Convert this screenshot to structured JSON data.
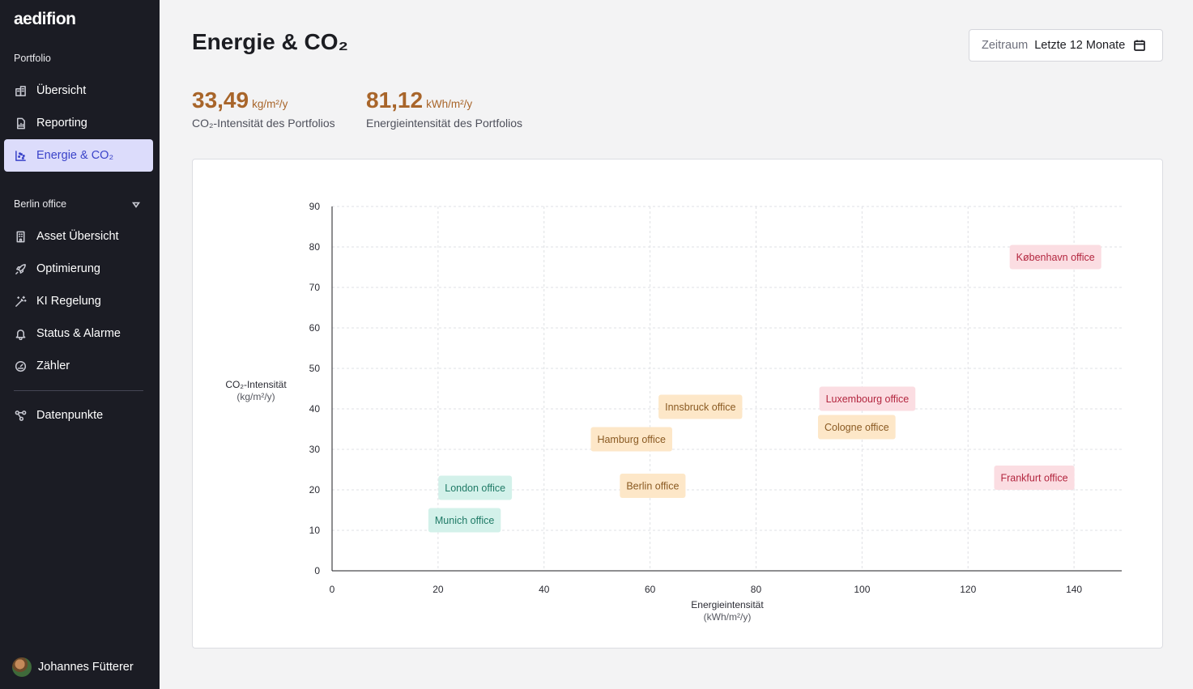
{
  "app": {
    "logo": "aedifion"
  },
  "sidebar": {
    "portfolio_label": "Portfolio",
    "portfolio_items": [
      {
        "label": "Übersicht",
        "icon": "buildings-icon"
      },
      {
        "label": "Reporting",
        "icon": "report-icon"
      },
      {
        "label": "Energie & CO₂",
        "icon": "scatter-chart-icon",
        "active": true
      }
    ],
    "asset_label": "Berlin office",
    "asset_items": [
      {
        "label": "Asset Übersicht",
        "icon": "building-icon"
      },
      {
        "label": "Optimierung",
        "icon": "rocket-icon"
      },
      {
        "label": "KI Regelung",
        "icon": "magic-wand-icon"
      },
      {
        "label": "Status & Alarme",
        "icon": "bell-icon"
      },
      {
        "label": "Zähler",
        "icon": "meter-icon"
      }
    ],
    "extra_items": [
      {
        "label": "Datenpunkte",
        "icon": "nodes-icon"
      }
    ],
    "user": {
      "name": "Johannes Fütterer"
    }
  },
  "header": {
    "title": "Energie & CO₂",
    "period_label": "Zeitraum",
    "period_value": "Letzte 12 Monate"
  },
  "kpis": [
    {
      "value": "33,49",
      "unit": "kg/m²/y",
      "caption": "CO₂-Intensität des Portfolios"
    },
    {
      "value": "81,12",
      "unit": "kWh/m²/y",
      "caption": "Energieintensität des Portfolios"
    }
  ],
  "colors": {
    "sidebar_bg": "#1b1c24",
    "accent": "#3a43c9",
    "kpi": "#a8652a",
    "green_bg": "#d3f1ea",
    "green_text": "#1f7a66",
    "orange_bg": "#fde7c8",
    "orange_text": "#8a5a22",
    "red_bg": "#fbdde2",
    "red_text": "#b3263f"
  },
  "chart_data": {
    "type": "scatter",
    "xlabel_line1": "Energieintensität",
    "xlabel_line2": "(kWh/m²/y)",
    "ylabel_line1": "CO₂-Intensität",
    "ylabel_line2": "(kg/m²/y)",
    "xlim": [
      0,
      149
    ],
    "ylim": [
      0,
      90
    ],
    "xticks": [
      0,
      20,
      40,
      60,
      80,
      100,
      120,
      140
    ],
    "yticks": [
      0,
      10,
      20,
      30,
      40,
      50,
      60,
      70,
      80,
      90
    ],
    "grid": true,
    "points": [
      {
        "name": "København office",
        "x": 136.5,
        "y": 77.5,
        "category": "red"
      },
      {
        "name": "Innsbruck office",
        "x": 69.5,
        "y": 40.5,
        "category": "orange"
      },
      {
        "name": "Luxembourg office",
        "x": 101,
        "y": 42.5,
        "category": "red"
      },
      {
        "name": "Cologne office",
        "x": 99,
        "y": 35.5,
        "category": "orange"
      },
      {
        "name": "Hamburg office",
        "x": 56.5,
        "y": 32.5,
        "category": "orange"
      },
      {
        "name": "London office",
        "x": 27,
        "y": 20.5,
        "category": "green"
      },
      {
        "name": "Berlin office",
        "x": 60.5,
        "y": 21,
        "category": "orange"
      },
      {
        "name": "Frankfurt office",
        "x": 132.5,
        "y": 23,
        "category": "red"
      },
      {
        "name": "Munich office",
        "x": 25,
        "y": 12.5,
        "category": "green"
      }
    ]
  }
}
